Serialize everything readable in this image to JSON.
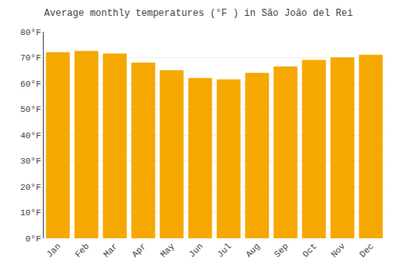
{
  "chart_data": {
    "type": "bar",
    "title": "Average monthly temperatures (°F ) in São João del Rei",
    "categories": [
      "Jan",
      "Feb",
      "Mar",
      "Apr",
      "May",
      "Jun",
      "Jul",
      "Aug",
      "Sep",
      "Oct",
      "Nov",
      "Dec"
    ],
    "values": [
      72,
      72.5,
      71.5,
      68,
      65,
      62,
      61.5,
      64,
      66.5,
      69,
      70,
      71
    ],
    "color": "#F5A800",
    "ylim": [
      0,
      80
    ],
    "yticks": [
      {
        "value": 0,
        "label": "0°F"
      },
      {
        "value": 10,
        "label": "10°F"
      },
      {
        "value": 20,
        "label": "20°F"
      },
      {
        "value": 30,
        "label": "30°F"
      },
      {
        "value": 40,
        "label": "40°F"
      },
      {
        "value": 50,
        "label": "50°F"
      },
      {
        "value": 60,
        "label": "60°F"
      },
      {
        "value": 70,
        "label": "70°F"
      },
      {
        "value": 80,
        "label": "80°F"
      }
    ],
    "grid": true
  }
}
